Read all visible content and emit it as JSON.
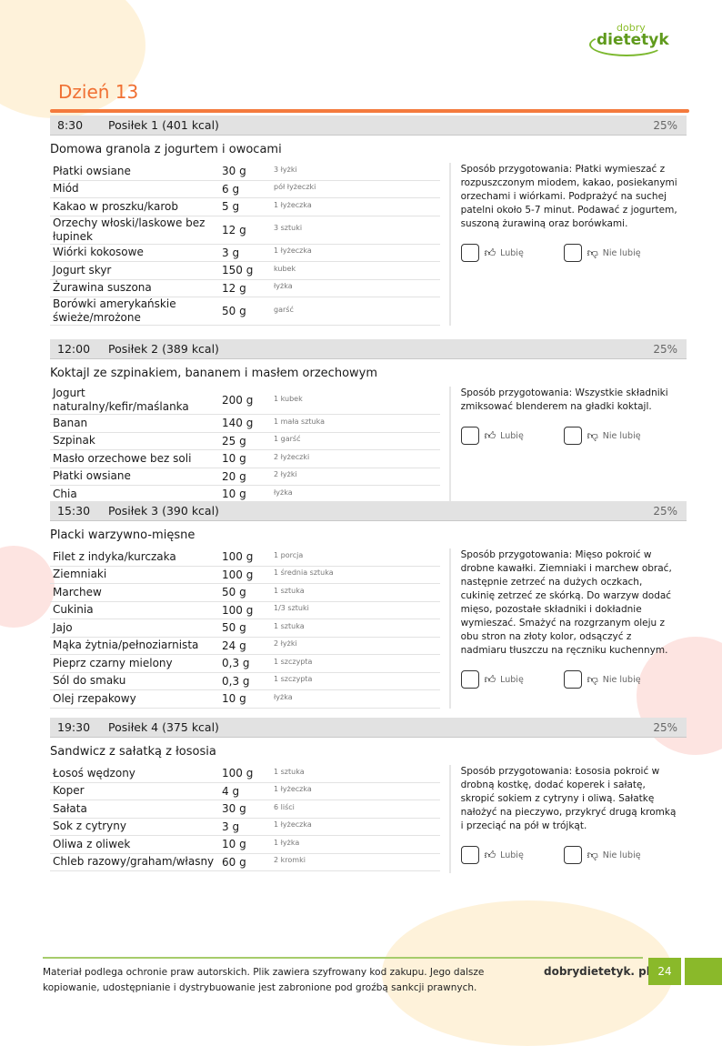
{
  "brand": {
    "logo_text_top": "dobry",
    "logo_text_main": "dietetyk"
  },
  "day_title": "Dzień 13",
  "labels": {
    "prep": "Sposób przygotowania",
    "like": "Lubię",
    "dislike": "Nie lubię"
  },
  "colors": {
    "accent": "#f07033",
    "brand_green": "#8ab92a",
    "header_gray": "#e2e2e2"
  },
  "meals": [
    {
      "time": "8:30",
      "name": "Posiłek 1 (401 kcal)",
      "percent": "25%",
      "recipe": "Domowa granola z jogurtem i owocami",
      "ingredients": [
        {
          "name": "Płatki owsiane",
          "amount": "30 g",
          "measure": "3 łyżki"
        },
        {
          "name": "Miód",
          "amount": "6 g",
          "measure": "pół łyżeczki"
        },
        {
          "name": "Kakao w proszku/karob",
          "amount": "5 g",
          "measure": "1 łyżeczka"
        },
        {
          "name": "Orzechy włoski/laskowe bez łupinek",
          "amount": "12 g",
          "measure": "3 sztuki"
        },
        {
          "name": "Wiórki kokosowe",
          "amount": "3 g",
          "measure": "1 łyżeczka"
        },
        {
          "name": "Jogurt skyr",
          "amount": "150 g",
          "measure": "kubek"
        },
        {
          "name": "Żurawina suszona",
          "amount": "12 g",
          "measure": "łyżka"
        },
        {
          "name": "Borówki amerykańskie świeże/mrożone",
          "amount": "50 g",
          "measure": "garść"
        }
      ],
      "preparation": "Płatki wymieszać z rozpuszczonym miodem, kakao, posiekanymi orzechami i wiórkami. Podprażyć na suchej patelni około 5-7 minut. Podawać z jogurtem, suszoną żurawiną oraz borówkami."
    },
    {
      "time": "12:00",
      "name": "Posiłek 2 (389 kcal)",
      "percent": "25%",
      "recipe": "Koktajl ze szpinakiem, bananem i masłem orzechowym",
      "ingredients": [
        {
          "name": "Jogurt naturalny/kefir/maślanka",
          "amount": "200 g",
          "measure": "1 kubek"
        },
        {
          "name": "Banan",
          "amount": "140 g",
          "measure": "1 mała sztuka"
        },
        {
          "name": "Szpinak",
          "amount": "25 g",
          "measure": "1 garść"
        },
        {
          "name": "Masło orzechowe bez soli",
          "amount": "10 g",
          "measure": "2 łyżeczki"
        },
        {
          "name": "Płatki owsiane",
          "amount": "20 g",
          "measure": "2 łyżki"
        },
        {
          "name": "Chia",
          "amount": "10 g",
          "measure": "łyżka"
        }
      ],
      "preparation": "Wszystkie składniki zmiksować blenderem na gładki koktajl."
    },
    {
      "time": "15:30",
      "name": "Posiłek 3 (390 kcal)",
      "percent": "25%",
      "recipe": "Placki warzywno-mięsne",
      "ingredients": [
        {
          "name": "Filet z indyka/kurczaka",
          "amount": "100 g",
          "measure": "1 porcja"
        },
        {
          "name": "Ziemniaki",
          "amount": "100 g",
          "measure": "1 średnia sztuka"
        },
        {
          "name": "Marchew",
          "amount": "50 g",
          "measure": "1 sztuka"
        },
        {
          "name": "Cukinia",
          "amount": "100 g",
          "measure": "1/3 sztuki"
        },
        {
          "name": "Jajo",
          "amount": "50 g",
          "measure": "1 sztuka"
        },
        {
          "name": "Mąka żytnia/pełnoziarnista",
          "amount": "24 g",
          "measure": "2 łyżki"
        },
        {
          "name": "Pieprz czarny mielony",
          "amount": "0,3 g",
          "measure": "1 szczypta"
        },
        {
          "name": "Sól do smaku",
          "amount": "0,3 g",
          "measure": "1 szczypta"
        },
        {
          "name": "Olej rzepakowy",
          "amount": "10 g",
          "measure": "łyżka"
        }
      ],
      "preparation": "Mięso pokroić w drobne kawałki. Ziemniaki i marchew obrać, następnie zetrzeć na dużych oczkach, cukinię zetrzeć ze skórką. Do warzyw dodać mięso, pozostałe składniki i dokładnie wymieszać. Smażyć na rozgrzanym oleju z obu stron na złoty kolor, odsączyć z nadmiaru tłuszczu na ręczniku kuchennym."
    },
    {
      "time": "19:30",
      "name": "Posiłek 4 (375 kcal)",
      "percent": "25%",
      "recipe": "Sandwicz z sałatką z łososia",
      "ingredients": [
        {
          "name": "Łosoś wędzony",
          "amount": "100 g",
          "measure": "1 sztuka"
        },
        {
          "name": "Koper",
          "amount": "4 g",
          "measure": "1 łyżeczka"
        },
        {
          "name": "Sałata",
          "amount": "30 g",
          "measure": "6 liści"
        },
        {
          "name": "Sok z cytryny",
          "amount": "3 g",
          "measure": "1 łyżeczka"
        },
        {
          "name": "Oliwa z oliwek",
          "amount": "10 g",
          "measure": "1 łyżka"
        },
        {
          "name": "Chleb razowy/graham/własny",
          "amount": "60 g",
          "measure": "2 kromki"
        }
      ],
      "preparation": "Łososia pokroić w drobną kostkę, dodać koperek i sałatę, skropić sokiem z cytryny i oliwą. Sałatkę nałożyć na pieczywo, przykryć drugą kromką i przeciąć na pół w trójkąt."
    }
  ],
  "footer": {
    "notice": "Materiał podlega ochronie praw autorskich. Plik zawiera szyfrowany kod zakupu. Jego dalsze kopiowanie, udostępnianie i dystrybuowanie jest zabronione pod groźbą sankcji prawnych.",
    "site": "dobrydietetyk. pl",
    "page": "24"
  }
}
